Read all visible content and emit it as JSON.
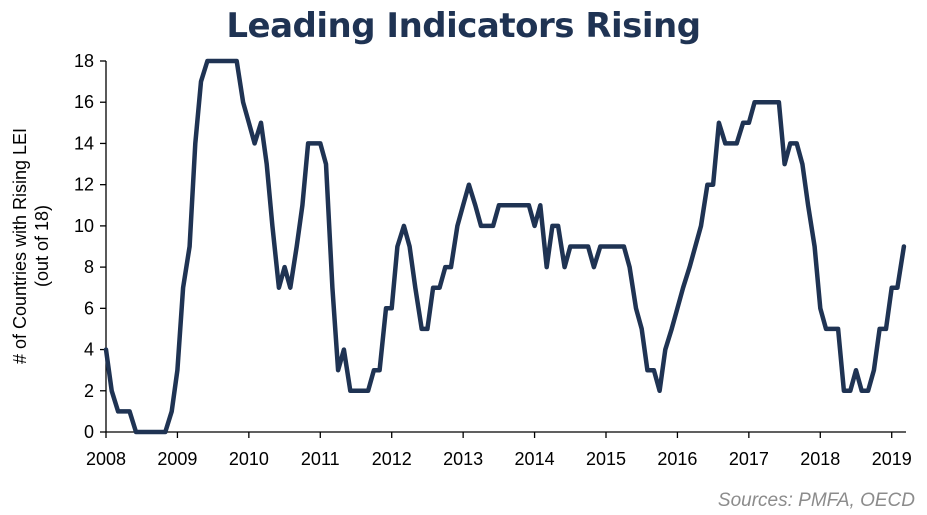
{
  "chart_data": {
    "type": "line",
    "title": "Leading Indicators Rising",
    "ylabel_line1": "# of Countries with Rising LEI",
    "ylabel_line2": "(out of 18)",
    "xlabel": "",
    "source": "Sources: PMFA, OECD",
    "xlim": [
      2008,
      2019.2
    ],
    "ylim": [
      0,
      18
    ],
    "yticks": [
      0,
      2,
      4,
      6,
      8,
      10,
      12,
      14,
      16,
      18
    ],
    "xticks": [
      2008,
      2009,
      2010,
      2011,
      2012,
      2013,
      2014,
      2015,
      2016,
      2017,
      2018,
      2019
    ],
    "xtick_labels": [
      "2008",
      "2009",
      "2010",
      "2011",
      "2012",
      "2013",
      "2014",
      "2015",
      "2016",
      "2017",
      "2018",
      "2019"
    ],
    "ytick_labels": [
      "0",
      "2",
      "4",
      "6",
      "8",
      "10",
      "12",
      "14",
      "16",
      "18"
    ],
    "line_color": "#1f3353",
    "series": [
      {
        "name": "# of Countries with Rising LEI",
        "x": [
          2008.0,
          2008.08,
          2008.17,
          2008.25,
          2008.33,
          2008.42,
          2008.5,
          2008.58,
          2008.67,
          2008.75,
          2008.83,
          2008.92,
          2009.0,
          2009.08,
          2009.17,
          2009.25,
          2009.33,
          2009.42,
          2009.5,
          2009.58,
          2009.67,
          2009.75,
          2009.83,
          2009.92,
          2010.0,
          2010.08,
          2010.17,
          2010.25,
          2010.33,
          2010.42,
          2010.5,
          2010.58,
          2010.67,
          2010.75,
          2010.83,
          2010.92,
          2011.0,
          2011.08,
          2011.17,
          2011.25,
          2011.33,
          2011.42,
          2011.5,
          2011.58,
          2011.67,
          2011.75,
          2011.83,
          2011.92,
          2012.0,
          2012.08,
          2012.17,
          2012.25,
          2012.33,
          2012.42,
          2012.5,
          2012.58,
          2012.67,
          2012.75,
          2012.83,
          2012.92,
          2013.0,
          2013.08,
          2013.17,
          2013.25,
          2013.33,
          2013.42,
          2013.5,
          2013.58,
          2013.67,
          2013.75,
          2013.83,
          2013.92,
          2014.0,
          2014.08,
          2014.17,
          2014.25,
          2014.33,
          2014.42,
          2014.5,
          2014.58,
          2014.67,
          2014.75,
          2014.83,
          2014.92,
          2015.0,
          2015.08,
          2015.17,
          2015.25,
          2015.33,
          2015.42,
          2015.5,
          2015.58,
          2015.67,
          2015.75,
          2015.83,
          2015.92,
          2016.0,
          2016.08,
          2016.17,
          2016.25,
          2016.33,
          2016.42,
          2016.5,
          2016.58,
          2016.67,
          2016.75,
          2016.83,
          2016.92,
          2017.0,
          2017.08,
          2017.17,
          2017.25,
          2017.33,
          2017.42,
          2017.5,
          2017.58,
          2017.67,
          2017.75,
          2017.83,
          2017.92,
          2018.0,
          2018.08,
          2018.17,
          2018.25,
          2018.33,
          2018.42,
          2018.5,
          2018.58,
          2018.67,
          2018.75,
          2018.83,
          2018.92,
          2019.0,
          2019.08,
          2019.17
        ],
        "y": [
          4,
          2,
          1,
          1,
          1,
          0,
          0,
          0,
          0,
          0,
          0,
          1,
          3,
          7,
          9,
          14,
          17,
          18,
          18,
          18,
          18,
          18,
          18,
          16,
          15,
          14,
          15,
          13,
          10,
          7,
          8,
          7,
          9,
          11,
          14,
          14,
          14,
          13,
          7,
          3,
          4,
          2,
          2,
          2,
          2,
          3,
          3,
          6,
          6,
          9,
          10,
          9,
          7,
          5,
          5,
          7,
          7,
          8,
          8,
          10,
          11,
          12,
          11,
          10,
          10,
          10,
          11,
          11,
          11,
          11,
          11,
          11,
          10,
          11,
          8,
          10,
          10,
          8,
          9,
          9,
          9,
          9,
          8,
          9,
          9,
          9,
          9,
          9,
          8,
          6,
          5,
          3,
          3,
          2,
          4,
          5,
          6,
          7,
          8,
          9,
          10,
          12,
          12,
          15,
          14,
          14,
          14,
          15,
          15,
          16,
          16,
          16,
          16,
          16,
          13,
          14,
          14,
          13,
          11,
          9,
          6,
          5,
          5,
          5,
          2,
          2,
          3,
          2,
          2,
          3,
          5,
          5,
          7,
          7,
          9
        ]
      }
    ]
  }
}
